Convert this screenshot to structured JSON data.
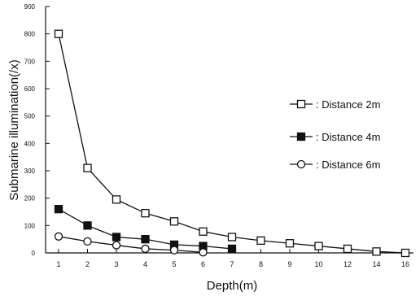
{
  "chart_data": {
    "type": "line",
    "title": "",
    "xlabel": "Depth(m)",
    "ylabel": "Submarine illumination(/x)",
    "categories": [
      "1",
      "2",
      "3",
      "4",
      "5",
      "6",
      "7",
      "8",
      "9",
      "10",
      "12",
      "14",
      "16"
    ],
    "y_ticks": [
      "0",
      "100",
      "200",
      "300",
      "400",
      "500",
      "600",
      "700",
      "800",
      "900"
    ],
    "ylim": [
      0,
      900
    ],
    "grid": false,
    "legend_position": "right",
    "series": [
      {
        "name": "Distance 2m",
        "legend_label": ": Distance 2m",
        "marker": "open-square",
        "values": [
          800,
          310,
          195,
          145,
          115,
          78,
          58,
          45,
          35,
          25,
          15,
          5,
          0
        ]
      },
      {
        "name": "Distance 4m",
        "legend_label": ": Distance 4m",
        "marker": "filled-square",
        "values": [
          160,
          100,
          58,
          50,
          30,
          25,
          15,
          null,
          null,
          null,
          null,
          null,
          null
        ]
      },
      {
        "name": "Distance 6m",
        "legend_label": ": Distance 6m",
        "marker": "open-circle",
        "values": [
          60,
          42,
          28,
          15,
          10,
          2,
          null,
          null,
          null,
          null,
          null,
          null,
          null
        ]
      }
    ]
  }
}
